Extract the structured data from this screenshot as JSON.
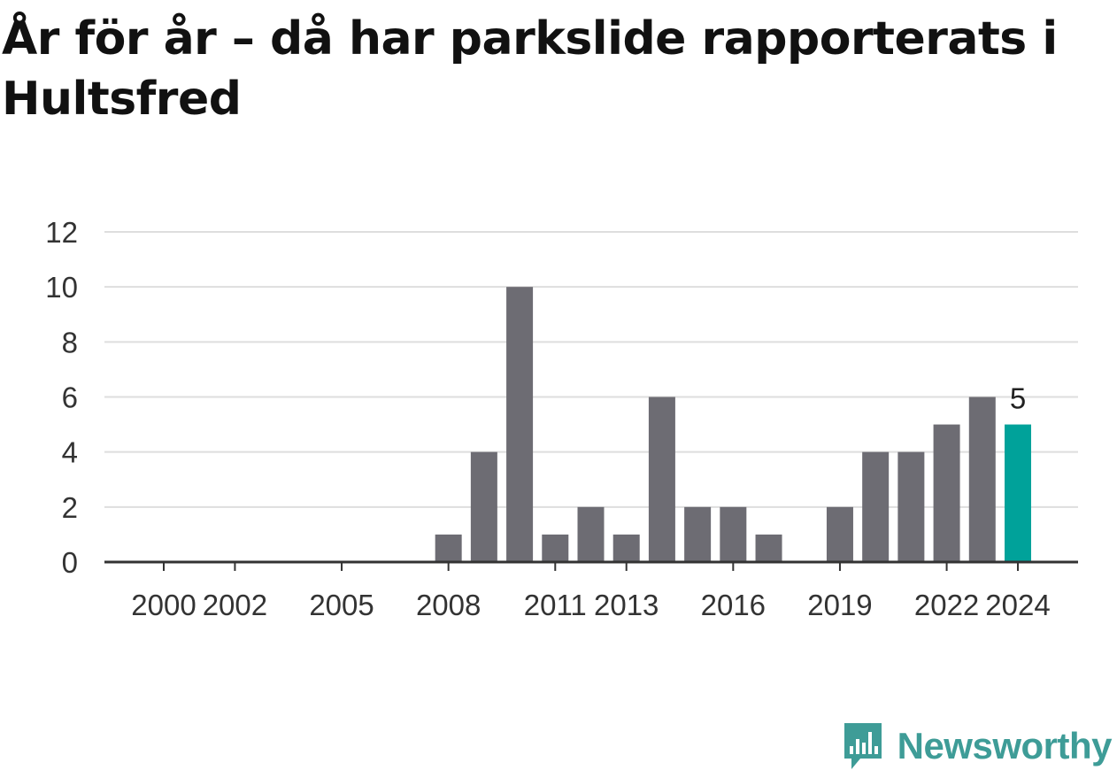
{
  "title": "År för år – då har parkslide rapporterats i Hultsfred",
  "brand": {
    "name": "Newsworthy",
    "icon": "newsworthy-logo-icon",
    "color": "#3e9c97"
  },
  "colors": {
    "bar": "#6d6c73",
    "highlight": "#00a29a",
    "grid": "#dedede",
    "axis": "#333333"
  },
  "chart_data": {
    "type": "bar",
    "x": [
      2000,
      2001,
      2002,
      2003,
      2004,
      2005,
      2006,
      2007,
      2008,
      2009,
      2010,
      2011,
      2012,
      2013,
      2014,
      2015,
      2016,
      2017,
      2018,
      2019,
      2020,
      2021,
      2022,
      2023,
      2024
    ],
    "values": [
      0,
      0,
      0,
      0,
      0,
      0,
      0,
      0,
      1,
      4,
      10,
      1,
      2,
      1,
      6,
      2,
      2,
      1,
      0,
      2,
      4,
      4,
      5,
      6,
      5
    ],
    "x_tick_labels": [
      "2000",
      "2002",
      "2005",
      "2008",
      "2011",
      "2013",
      "2016",
      "2019",
      "2022",
      "2024"
    ],
    "y_ticks": [
      0,
      2,
      4,
      6,
      8,
      10,
      12
    ],
    "ylim": [
      0,
      12
    ],
    "highlight": {
      "x": 2024,
      "value": 5,
      "label": "5"
    },
    "grid": true,
    "xlabel": "",
    "ylabel": ""
  }
}
